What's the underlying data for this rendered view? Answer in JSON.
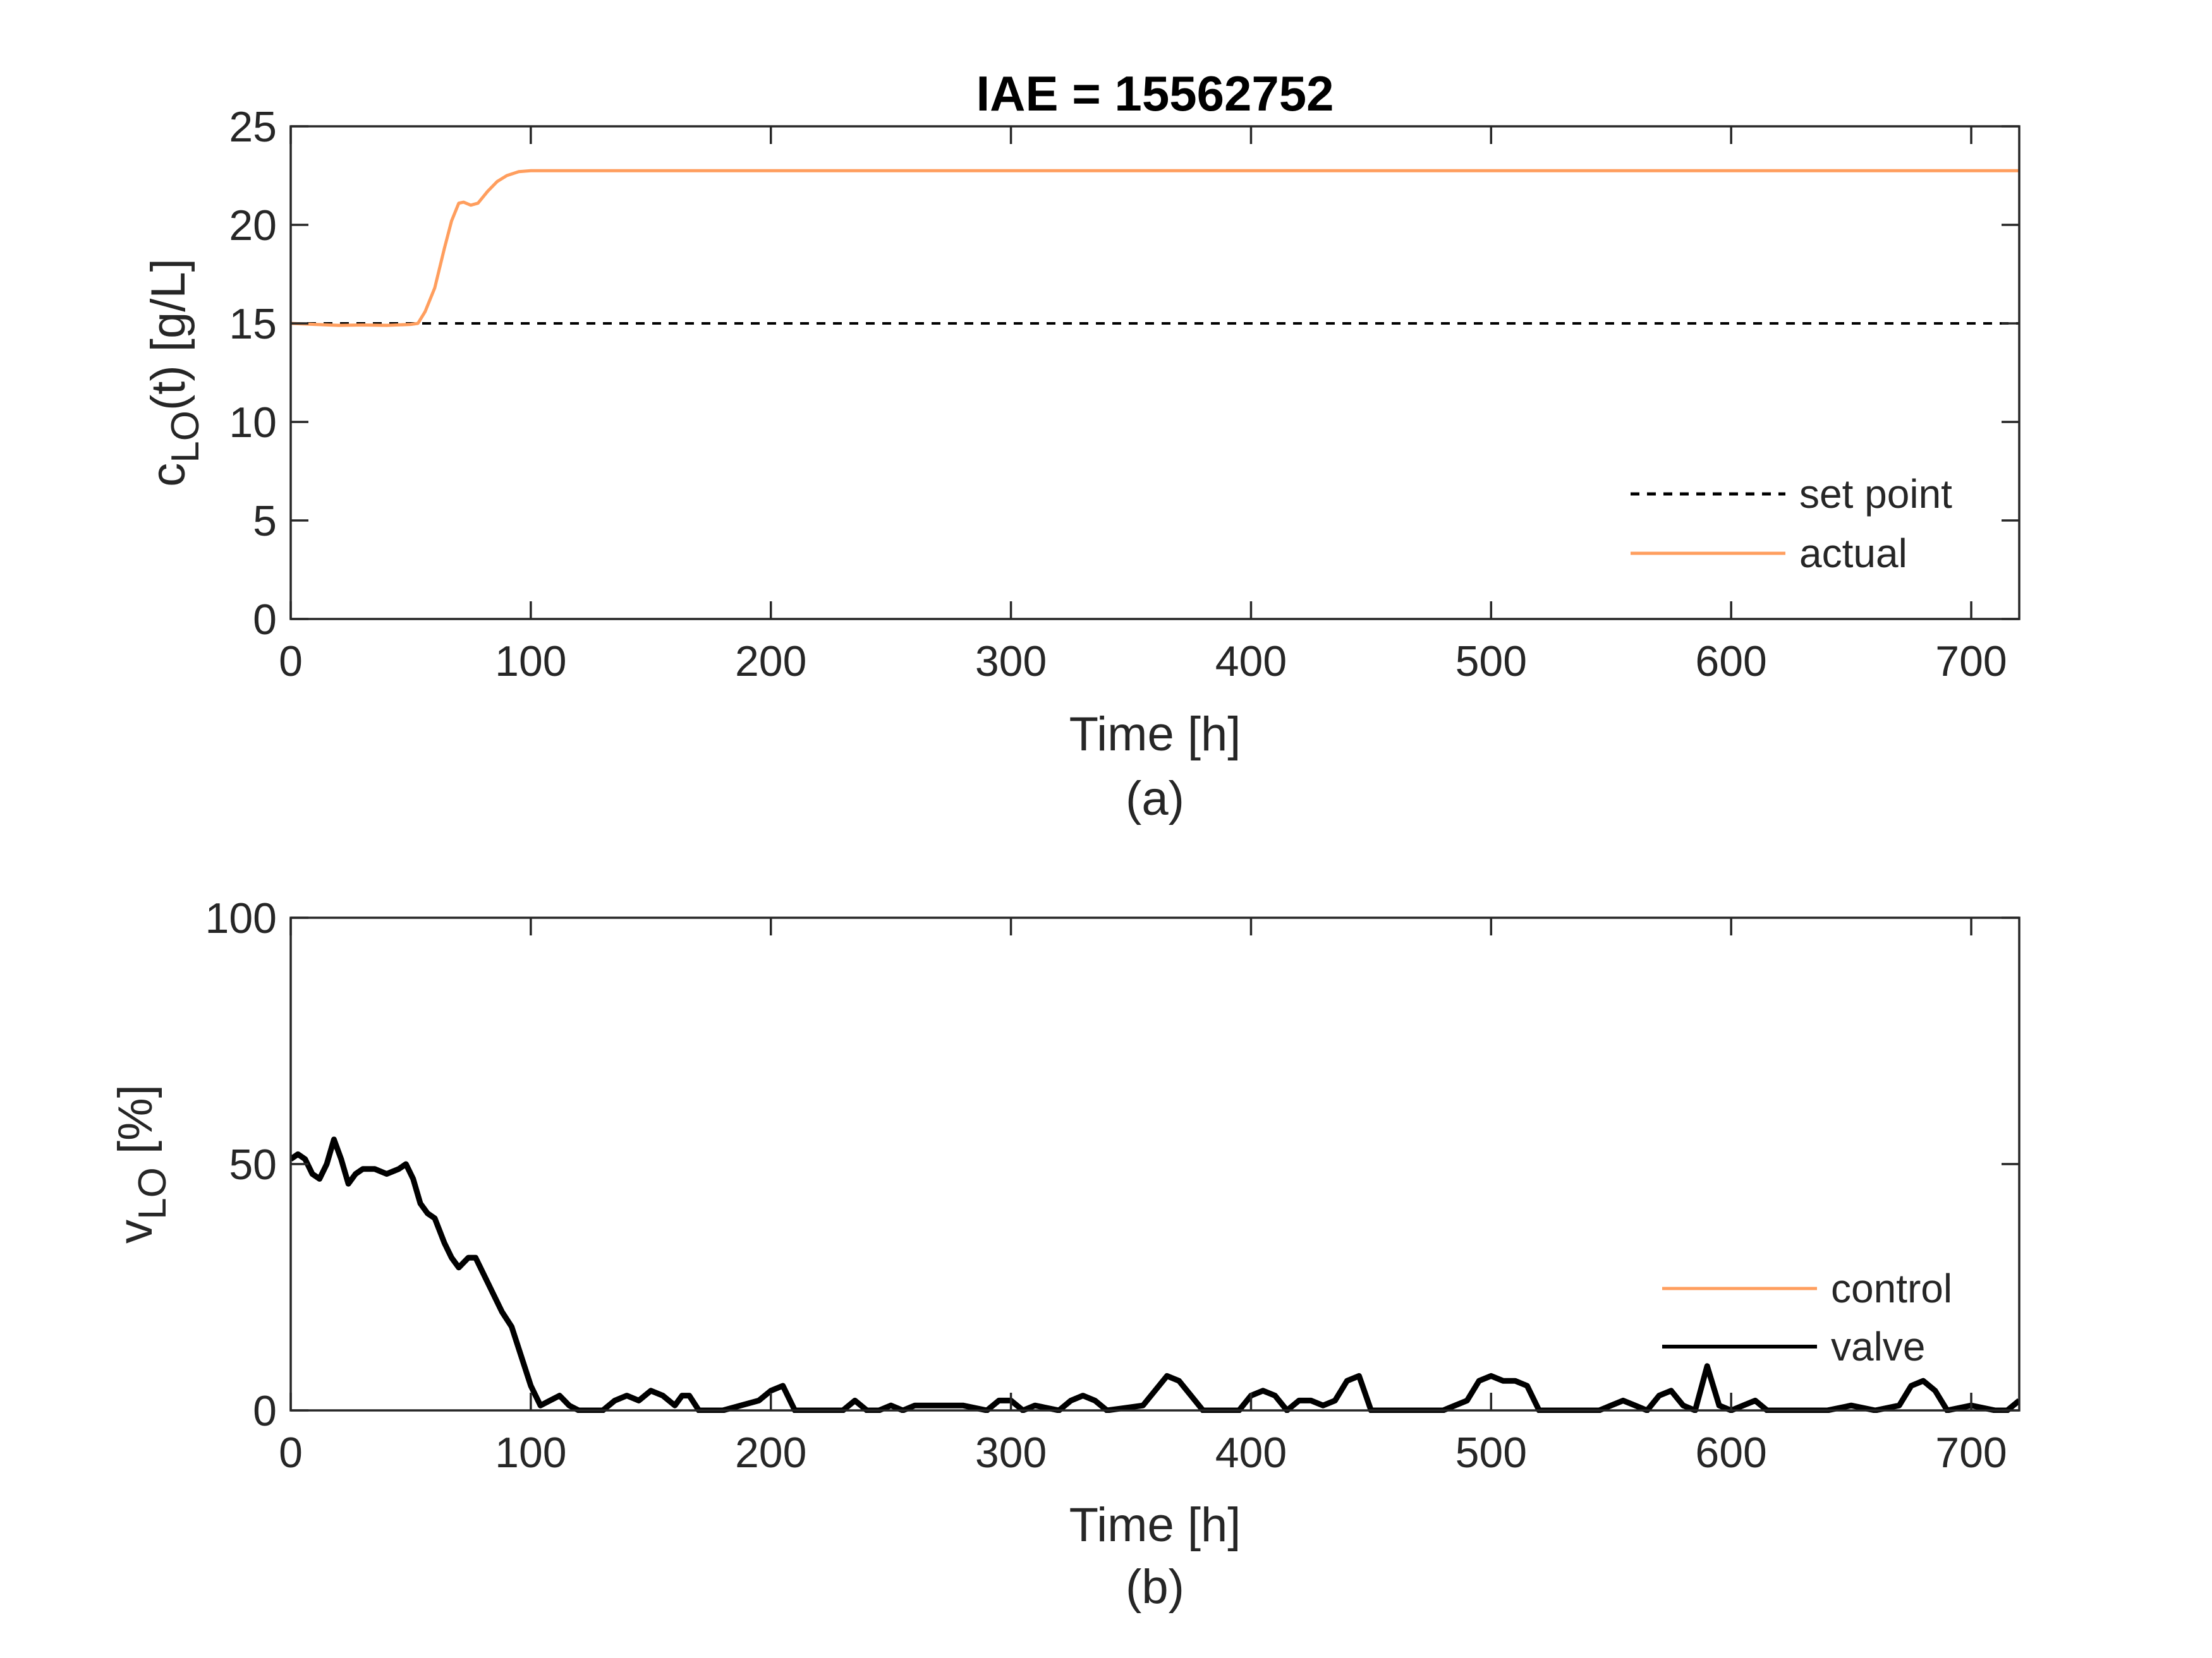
{
  "colors": {
    "orange": "#FF9E5E",
    "black": "#000000",
    "axis": "#262626"
  },
  "chart_data": [
    {
      "type": "line",
      "title": "IAE = 15562752",
      "xlabel": "Time [h]",
      "ylabel_main": "c",
      "ylabel_sub": "LO",
      "ylabel_rest": "(t) [g/L]",
      "caption": "(a)",
      "xlim": [
        0,
        720
      ],
      "ylim": [
        0,
        25
      ],
      "xticks": [
        0,
        100,
        200,
        300,
        400,
        500,
        600,
        700
      ],
      "xtick_labels": [
        "0",
        "100",
        "200",
        "300",
        "400",
        "500",
        "600",
        "700"
      ],
      "yticks": [
        0,
        5,
        10,
        15,
        20,
        25
      ],
      "ytick_labels": [
        "0",
        "5",
        "10",
        "15",
        "20",
        "25"
      ],
      "legend_position": "bottom-right",
      "grid": false,
      "series": [
        {
          "name": "set point",
          "style": "dashed",
          "color": "#000000",
          "x": [
            0,
            720
          ],
          "y": [
            15,
            15
          ]
        },
        {
          "name": "actual",
          "style": "solid",
          "color": "#FF9E5E",
          "x": [
            0,
            10,
            20,
            30,
            40,
            50,
            53,
            56,
            60,
            64,
            67,
            70,
            72,
            75,
            78,
            82,
            86,
            90,
            95,
            100,
            110,
            150,
            200,
            300,
            400,
            500,
            600,
            700,
            720
          ],
          "y": [
            15.0,
            14.95,
            14.9,
            14.92,
            14.9,
            14.95,
            15.0,
            15.6,
            16.8,
            18.8,
            20.2,
            21.1,
            21.15,
            21.0,
            21.1,
            21.7,
            22.2,
            22.5,
            22.7,
            22.75,
            22.75,
            22.75,
            22.75,
            22.75,
            22.75,
            22.75,
            22.75,
            22.75,
            22.75
          ]
        }
      ]
    },
    {
      "type": "line",
      "title": "",
      "xlabel": "Time [h]",
      "ylabel_main": "v",
      "ylabel_sub": "LO",
      "ylabel_rest": " [%]",
      "caption": "(b)",
      "xlim": [
        0,
        720
      ],
      "ylim": [
        0,
        100
      ],
      "xticks": [
        0,
        100,
        200,
        300,
        400,
        500,
        600,
        700
      ],
      "xtick_labels": [
        "0",
        "100",
        "200",
        "300",
        "400",
        "500",
        "600",
        "700"
      ],
      "yticks": [
        0,
        50,
        100
      ],
      "ytick_labels": [
        "0",
        "50",
        "100"
      ],
      "legend_position": "bottom-right",
      "grid": false,
      "series": [
        {
          "name": "control",
          "style": "solid",
          "color": "#FF9E5E",
          "x": [],
          "y": []
        },
        {
          "name": "valve",
          "style": "solid",
          "color": "#000000",
          "x": [
            0,
            3,
            6,
            9,
            12,
            15,
            18,
            21,
            24,
            27,
            30,
            35,
            40,
            45,
            48,
            51,
            54,
            57,
            60,
            64,
            67,
            70,
            74,
            77,
            80,
            84,
            88,
            92,
            96,
            100,
            104,
            108,
            112,
            116,
            120,
            130,
            135,
            140,
            145,
            150,
            155,
            160,
            163,
            166,
            170,
            180,
            195,
            200,
            205,
            210,
            230,
            235,
            240,
            245,
            250,
            255,
            260,
            270,
            280,
            290,
            295,
            300,
            305,
            310,
            320,
            325,
            330,
            335,
            340,
            355,
            360,
            365,
            370,
            375,
            380,
            395,
            400,
            405,
            410,
            415,
            420,
            425,
            430,
            435,
            440,
            445,
            450,
            460,
            470,
            480,
            485,
            490,
            495,
            500,
            505,
            510,
            515,
            520,
            545,
            550,
            555,
            560,
            565,
            570,
            575,
            580,
            585,
            590,
            595,
            600,
            605,
            610,
            615,
            625,
            640,
            650,
            660,
            670,
            675,
            680,
            685,
            690,
            700,
            710,
            715,
            720
          ],
          "y": [
            51,
            52,
            51,
            48,
            47,
            50,
            55,
            51,
            46,
            48,
            49,
            49,
            48,
            49,
            50,
            47,
            42,
            40,
            39,
            34,
            31,
            29,
            31,
            31,
            28,
            24,
            20,
            17,
            11,
            5,
            1,
            2,
            3,
            1,
            0,
            0,
            2,
            3,
            2,
            4,
            3,
            1,
            3,
            3,
            0,
            0,
            2,
            4,
            5,
            0,
            0,
            2,
            0,
            0,
            1,
            0,
            1,
            1,
            1,
            0,
            2,
            2,
            0,
            1,
            0,
            2,
            3,
            2,
            0,
            1,
            4,
            7,
            6,
            3,
            0,
            0,
            3,
            4,
            3,
            0,
            2,
            2,
            1,
            2,
            6,
            7,
            0,
            0,
            0,
            0,
            1,
            2,
            6,
            7,
            6,
            6,
            5,
            0,
            0,
            1,
            2,
            1,
            0,
            3,
            4,
            1,
            0,
            9,
            1,
            0,
            1,
            2,
            0,
            0,
            0,
            1,
            0,
            1,
            5,
            6,
            4,
            0,
            1,
            0,
            0,
            2
          ]
        }
      ]
    }
  ]
}
